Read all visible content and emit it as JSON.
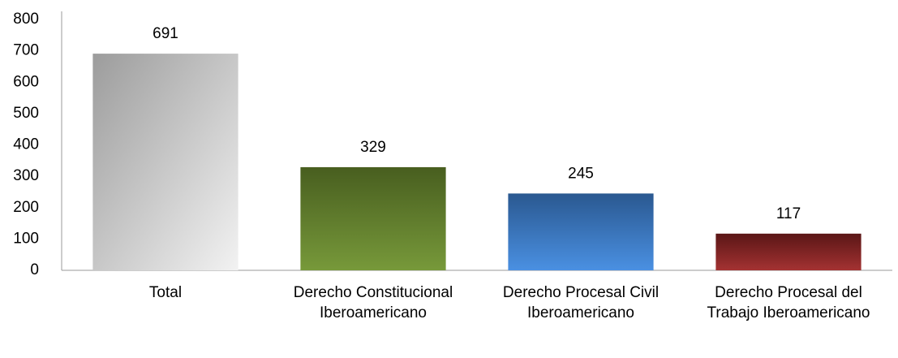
{
  "chart_data": {
    "type": "bar",
    "categories": [
      "Total",
      "Derecho Constitucional Iberoamericano",
      "Derecho Procesal Civil Iberoamericano",
      "Derecho Procesal del Trabajo Iberoamericano"
    ],
    "values": [
      691,
      329,
      245,
      117
    ],
    "colors": [
      [
        "#9c9c9c",
        "#f2f2f2"
      ],
      [
        "#485e1f",
        "#77993a"
      ],
      [
        "#2a5890",
        "#4a90e2"
      ],
      [
        "#5a1616",
        "#a43232"
      ]
    ],
    "ylim": [
      0,
      800
    ],
    "yticks": [
      0,
      100,
      200,
      300,
      400,
      500,
      600,
      700,
      800
    ],
    "grid": false
  }
}
